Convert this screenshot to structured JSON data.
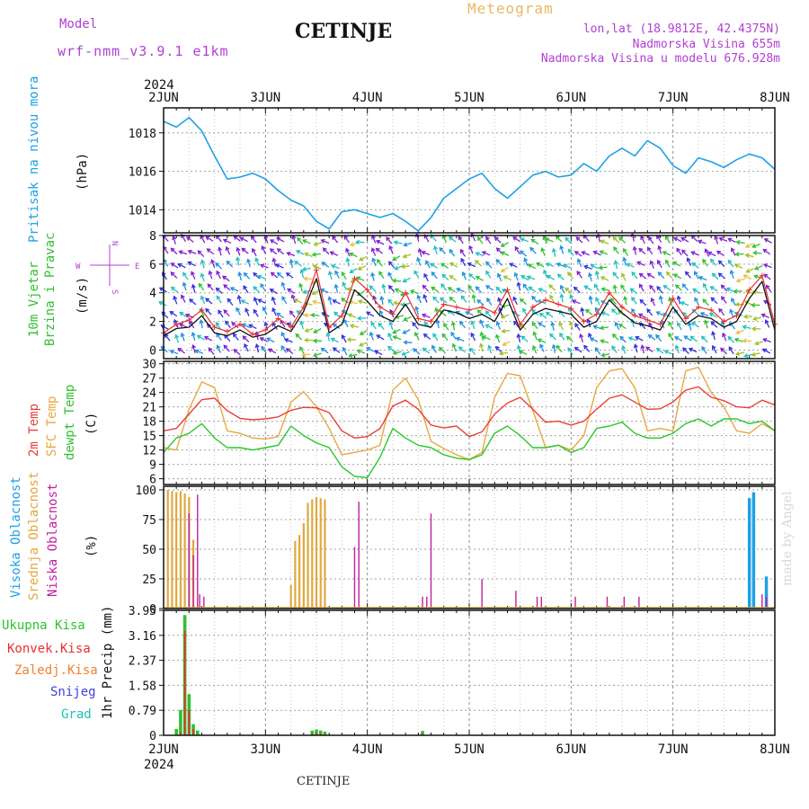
{
  "header": {
    "model_label": "Model",
    "model_version": "wrf-nmm_v3.9.1 e1km",
    "station": "CETINJE",
    "meteogram_label": "Meteogram",
    "lonlat": "lon,lat (18.9812E, 42.4375N)",
    "altitude": "Nadmorska Visina 655m",
    "model_altitude": "Nadmorska Visina u modelu 676.928m"
  },
  "footer": {
    "station": "CETINJE",
    "credit": "made by Angel"
  },
  "time_axis": {
    "year_top": "2024",
    "year_bottom": "2024",
    "days": [
      "2JUN",
      "3JUN",
      "4JUN",
      "5JUN",
      "6JUN",
      "7JUN",
      "8JUN"
    ]
  },
  "colors": {
    "pressure": "#1ea0e6",
    "temp2m": "#e8403a",
    "sfc": "#e8a840",
    "dewpt": "#28c828",
    "high_cloud": "#1ea0e6",
    "mid_cloud": "#e0a840",
    "low_cloud": "#c020a0",
    "total_precip": "#30c030",
    "conv_precip": "#e83030",
    "frz_precip": "#f08030",
    "snow": "#4040d8",
    "hail": "#20c0b0"
  },
  "panels": {
    "pressure": {
      "label1": "Pritisak na nivou mora",
      "unit": "(hPa)"
    },
    "wind": {
      "label1": "10m Vjetar",
      "label2": "Brzina i Pravac",
      "unit": "(m/s)",
      "compass_n": "N",
      "compass_s": "S",
      "compass_w": "W",
      "compass_e": "E"
    },
    "temp": {
      "label1": "2m Temp",
      "label2": "SFC Temp",
      "label3": "dewpt Temp",
      "unit": "(C)"
    },
    "cloud": {
      "label1": "Visoka Oblacnost",
      "label2": "Srednja Oblacnost",
      "label3": "Niska Oblacnost",
      "unit": "(%)"
    },
    "precip": {
      "label1": "Ukupna Kisa",
      "label2": "Konvek.Kisa",
      "label3": "Zaledj.Kisa",
      "label4": "Snijeg",
      "label5": "Grad",
      "unit": "1hr Precip (mm)"
    }
  },
  "chart_data": [
    {
      "type": "line",
      "name": "pressure",
      "ylim": [
        1012.8,
        1019.3
      ],
      "yticks": [
        1014,
        1016,
        1018
      ],
      "hours": [
        0,
        3,
        6,
        9,
        12,
        15,
        18,
        21,
        24,
        27,
        30,
        33,
        36,
        39,
        42,
        45,
        48,
        51,
        54,
        57,
        60,
        63,
        66,
        69,
        72,
        75,
        78,
        81,
        84,
        87,
        90,
        93,
        96,
        99,
        102,
        105,
        108,
        111,
        114,
        117,
        120,
        123,
        126,
        129,
        132,
        135,
        138,
        141,
        144
      ],
      "values": [
        1018.6,
        1018.3,
        1018.8,
        1018.1,
        1016.8,
        1015.6,
        1015.7,
        1015.9,
        1015.6,
        1015.0,
        1014.5,
        1014.2,
        1013.4,
        1013.0,
        1013.9,
        1014.0,
        1013.8,
        1013.6,
        1013.8,
        1013.4,
        1012.9,
        1013.6,
        1014.6,
        1015.1,
        1015.6,
        1015.9,
        1015.1,
        1014.6,
        1015.2,
        1015.8,
        1016.0,
        1015.7,
        1015.8,
        1016.4,
        1016.0,
        1016.8,
        1017.2,
        1016.8,
        1017.6,
        1017.2,
        1016.3,
        1015.9,
        1016.7,
        1016.5,
        1016.2,
        1016.6,
        1016.9,
        1016.7,
        1016.1
      ]
    },
    {
      "type": "line",
      "name": "wind",
      "ylim": [
        -0.6,
        8
      ],
      "yticks": [
        0,
        2,
        4,
        6,
        8
      ],
      "hours": [
        0,
        3,
        6,
        9,
        12,
        15,
        18,
        21,
        24,
        27,
        30,
        33,
        36,
        39,
        42,
        45,
        48,
        51,
        54,
        57,
        60,
        63,
        66,
        69,
        72,
        75,
        78,
        81,
        84,
        87,
        90,
        93,
        96,
        99,
        102,
        105,
        108,
        111,
        114,
        117,
        120,
        123,
        126,
        129,
        132,
        135,
        138,
        141,
        144
      ],
      "speed": [
        1.0,
        1.5,
        1.6,
        2.4,
        1.2,
        1.0,
        1.4,
        0.9,
        1.1,
        1.7,
        1.3,
        2.7,
        5.0,
        1.2,
        1.8,
        4.2,
        3.4,
        2.4,
        2.0,
        3.2,
        1.8,
        1.6,
        2.8,
        2.6,
        2.2,
        2.5,
        2.0,
        3.6,
        1.4,
        2.5,
        2.9,
        2.7,
        2.5,
        1.6,
        2.0,
        3.5,
        2.6,
        1.9,
        1.7,
        1.4,
        3.0,
        1.8,
        2.4,
        2.2,
        1.6,
        2.0,
        3.6,
        4.8,
        1.4
      ],
      "gust": [
        1.2,
        1.8,
        2.1,
        2.8,
        1.6,
        1.3,
        1.8,
        1.1,
        1.4,
        2.2,
        1.6,
        3.0,
        5.6,
        1.6,
        2.4,
        5.0,
        4.2,
        3.0,
        2.5,
        4.0,
        2.2,
        2.0,
        3.2,
        3.0,
        2.8,
        3.0,
        2.6,
        4.2,
        1.8,
        3.0,
        3.5,
        3.2,
        2.9,
        2.0,
        2.5,
        4.0,
        3.0,
        2.4,
        2.1,
        1.8,
        3.6,
        2.2,
        3.0,
        2.8,
        2.0,
        2.4,
        4.2,
        5.2,
        1.8
      ]
    },
    {
      "type": "line",
      "name": "temperature",
      "ylim": [
        4.8,
        30.5
      ],
      "yticks": [
        6,
        9,
        12,
        15,
        18,
        21,
        24,
        27,
        30
      ],
      "hours": [
        0,
        3,
        6,
        9,
        12,
        15,
        18,
        21,
        24,
        27,
        30,
        33,
        36,
        39,
        42,
        45,
        48,
        51,
        54,
        57,
        60,
        63,
        66,
        69,
        72,
        75,
        78,
        81,
        84,
        87,
        90,
        93,
        96,
        99,
        102,
        105,
        108,
        111,
        114,
        117,
        120,
        123,
        126,
        129,
        132,
        135,
        138,
        141,
        144
      ],
      "temp2m": [
        16.0,
        16.5,
        19.5,
        22.5,
        22.8,
        20.2,
        18.6,
        18.3,
        18.5,
        18.9,
        20.3,
        20.9,
        20.8,
        19.8,
        16.0,
        14.5,
        14.8,
        16.5,
        21.2,
        22.4,
        20.5,
        17.2,
        16.6,
        17.0,
        14.8,
        15.8,
        19.5,
        21.8,
        23.0,
        20.5,
        17.8,
        18.0,
        17.2,
        18.0,
        20.5,
        22.8,
        23.5,
        22.0,
        20.5,
        20.6,
        22.0,
        24.5,
        25.2,
        23.0,
        22.3,
        21.0,
        20.8,
        22.4,
        21.4
      ],
      "sfc": [
        12.5,
        12.0,
        20.5,
        26.2,
        25.0,
        16.0,
        15.5,
        14.5,
        14.3,
        14.8,
        22.0,
        24.2,
        21.0,
        16.5,
        11.0,
        11.5,
        12.0,
        13.0,
        24.5,
        27.0,
        22.5,
        13.8,
        12.3,
        11.0,
        10.0,
        11.5,
        23.0,
        28.0,
        27.5,
        20.2,
        12.5,
        13.0,
        12.0,
        15.0,
        25.0,
        28.5,
        29.0,
        25.0,
        16.0,
        16.5,
        16.0,
        28.5,
        29.3,
        24.0,
        21.0,
        16.0,
        15.5,
        17.5,
        16.0
      ],
      "dewpt": [
        11.5,
        14.5,
        15.5,
        17.5,
        14.5,
        12.5,
        12.5,
        12.0,
        12.5,
        13.0,
        17.0,
        15.0,
        13.5,
        12.5,
        8.5,
        6.5,
        6.2,
        10.5,
        16.5,
        14.5,
        13.0,
        12.5,
        11.0,
        10.3,
        10.0,
        11.0,
        15.5,
        17.0,
        15.0,
        12.5,
        12.5,
        13.0,
        11.5,
        12.5,
        16.5,
        17.0,
        17.8,
        15.5,
        14.5,
        14.5,
        15.5,
        17.5,
        18.5,
        17.0,
        18.5,
        18.5,
        17.5,
        18.0,
        16.0
      ]
    },
    {
      "type": "bar",
      "name": "cloud_cover",
      "ylim": [
        0,
        103
      ],
      "yticks": [
        0,
        25,
        50,
        75,
        100
      ],
      "mid_hours": [
        1,
        2,
        3,
        4,
        5,
        6,
        7,
        30,
        31,
        32,
        33,
        34,
        35,
        36,
        37,
        38
      ],
      "mid_values": [
        100,
        99,
        98,
        99,
        97,
        94,
        58,
        20,
        57,
        62,
        72,
        89,
        92,
        94,
        93,
        92
      ],
      "low_hours": [
        6,
        7,
        8,
        8.5,
        9.5,
        45,
        46,
        61,
        62,
        63,
        75,
        83,
        88,
        89,
        97,
        104.5,
        108.5,
        112,
        141,
        142
      ],
      "low_values": [
        80,
        45,
        96,
        12,
        10,
        52,
        90,
        10,
        10,
        80,
        25,
        15,
        10,
        10,
        10,
        10,
        10,
        10,
        12,
        10
      ],
      "high_hours": [
        138,
        139,
        142
      ],
      "high_values": [
        93,
        98,
        27
      ]
    },
    {
      "type": "bar",
      "name": "precipitation",
      "ylim": [
        0,
        3.95
      ],
      "yticks": [
        0,
        0.79,
        1.58,
        2.37,
        3.16,
        3.95
      ],
      "hours": [
        3,
        4,
        5,
        6,
        7,
        8,
        35,
        36,
        37,
        38,
        61
      ],
      "total": [
        0.2,
        0.8,
        3.8,
        1.3,
        0.35,
        0.15,
        0.15,
        0.18,
        0.15,
        0.12,
        0.14
      ],
      "convective": [
        0.0,
        0.1,
        3.3,
        0.8,
        0.2,
        0.0,
        0.05,
        0.08,
        0.06,
        0.04,
        0.05
      ]
    }
  ]
}
